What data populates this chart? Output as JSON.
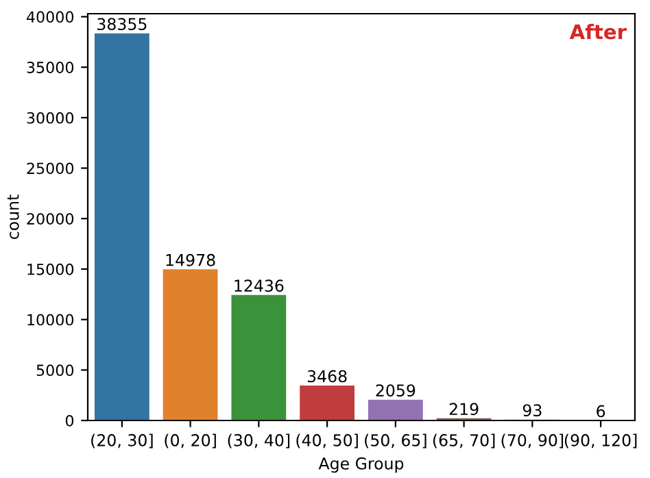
{
  "chart_data": {
    "type": "bar",
    "xlabel": "Age Group",
    "ylabel": "count",
    "categories": [
      "(20, 30]",
      "(0, 20]",
      "(30, 40]",
      "(40, 50]",
      "(50, 65]",
      "(65, 70]",
      "(70, 90]",
      "(90, 120]"
    ],
    "values": [
      38355,
      14978,
      12436,
      3468,
      2059,
      219,
      93,
      6
    ],
    "colors": [
      "#3274a1",
      "#e1812c",
      "#3a923a",
      "#c03d3e",
      "#9372b2",
      "#845b53",
      "#d684bd",
      "#7f7f7f"
    ],
    "ylim": [
      0,
      40300
    ],
    "yticks": [
      0,
      5000,
      10000,
      15000,
      20000,
      25000,
      30000,
      35000,
      40000
    ],
    "data_labels": true,
    "grid": false,
    "legend": false,
    "annotations": [
      "After"
    ]
  }
}
